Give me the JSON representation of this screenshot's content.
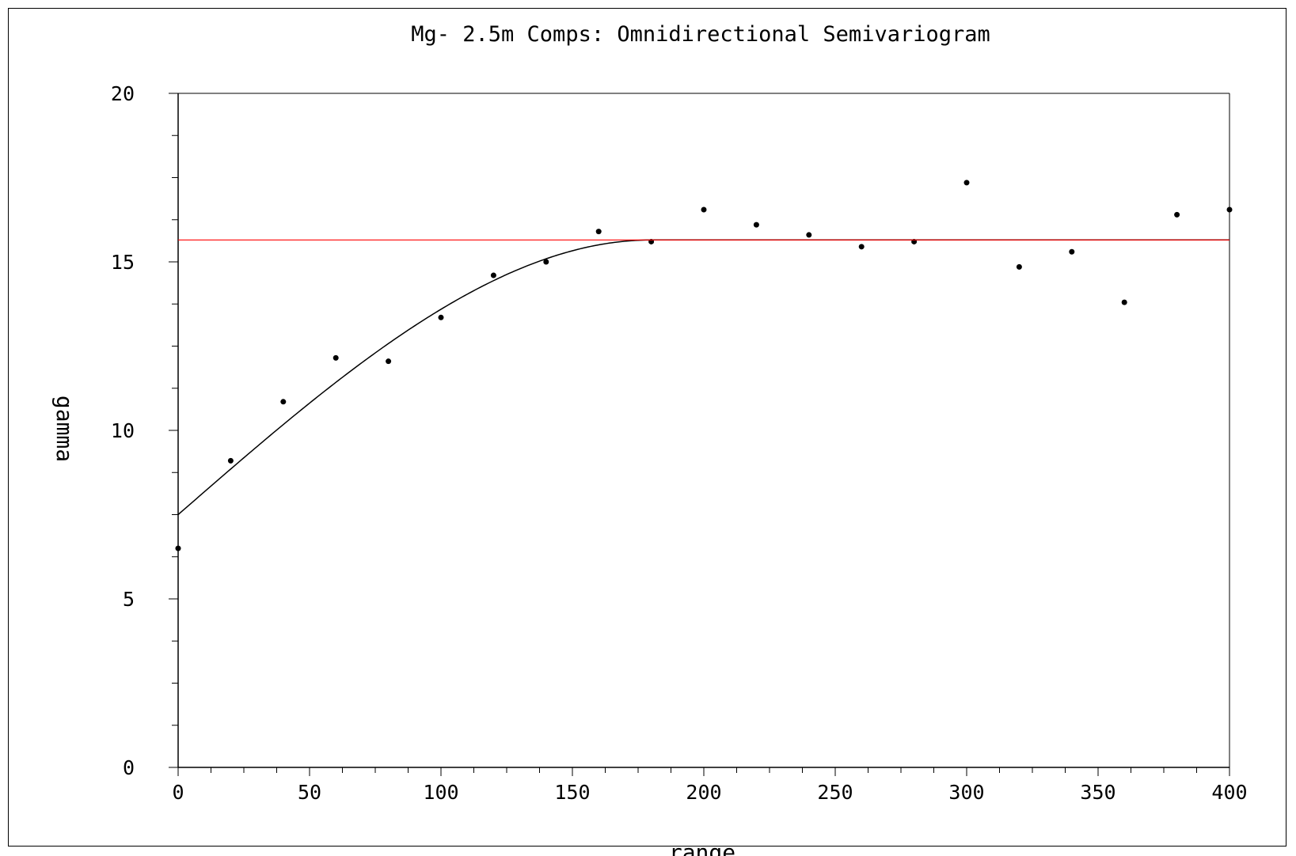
{
  "chart_data": {
    "type": "scatter",
    "title": "Mg- 2.5m Comps: Omnidirectional Semivariogram",
    "xlabel": "range",
    "ylabel": "gamma",
    "xlim": [
      0,
      400
    ],
    "ylim": [
      0,
      20
    ],
    "x_ticks": [
      0,
      50,
      100,
      150,
      200,
      250,
      300,
      350,
      400
    ],
    "x_tick_labels": [
      "0",
      "50",
      "100",
      "150",
      "200",
      "250",
      "300",
      "350",
      "400"
    ],
    "y_ticks": [
      0,
      5,
      10,
      15,
      20
    ],
    "y_tick_labels": [
      "0",
      "5",
      "10",
      "15",
      "20"
    ],
    "grid": false,
    "series": [
      {
        "kind": "points",
        "x": [
          0,
          20,
          40,
          60,
          80,
          100,
          120,
          140,
          160,
          180,
          200,
          220,
          240,
          260,
          280,
          300,
          320,
          340,
          360,
          380,
          400
        ],
        "y": [
          6.5,
          9.1,
          10.85,
          12.15,
          12.05,
          13.35,
          14.6,
          15.0,
          15.9,
          15.6,
          16.55,
          16.1,
          15.8,
          15.45,
          15.6,
          17.35,
          14.85,
          15.3,
          13.8,
          16.4,
          16.55
        ],
        "color": "#000000"
      },
      {
        "kind": "model",
        "model": "spherical",
        "nugget": 7.5,
        "sill": 15.65,
        "range": 180,
        "x_max": 400,
        "color": "#000000"
      },
      {
        "kind": "hline",
        "y": 15.65,
        "color": "#ff0000"
      }
    ]
  }
}
